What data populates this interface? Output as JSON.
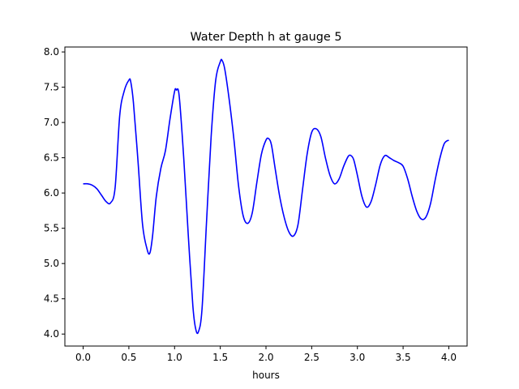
{
  "chart_data": {
    "type": "line",
    "title": "Water Depth h at gauge 5",
    "xlabel": "hours",
    "ylabel": "",
    "xlim": [
      -0.2,
      4.2
    ],
    "ylim": [
      3.83,
      8.07
    ],
    "x_ticks": [
      0.0,
      0.5,
      1.0,
      1.5,
      2.0,
      2.5,
      3.0,
      3.5,
      4.0
    ],
    "x_tick_labels": [
      "0.0",
      "0.5",
      "1.0",
      "1.5",
      "2.0",
      "2.5",
      "3.0",
      "3.5",
      "4.0"
    ],
    "y_ticks": [
      4.0,
      4.5,
      5.0,
      5.5,
      6.0,
      6.5,
      7.0,
      7.5,
      8.0
    ],
    "y_tick_labels": [
      "4.0",
      "4.5",
      "5.0",
      "5.5",
      "6.0",
      "6.5",
      "7.0",
      "7.5",
      "8.0"
    ],
    "grid": false,
    "legend": "none",
    "series": [
      {
        "color": "#0000ff",
        "x": [
          0.0,
          0.05,
          0.1,
          0.15,
          0.2,
          0.25,
          0.3,
          0.35,
          0.4,
          0.45,
          0.5,
          0.52,
          0.55,
          0.6,
          0.65,
          0.7,
          0.73,
          0.76,
          0.8,
          0.85,
          0.9,
          0.95,
          1.0,
          1.02,
          1.05,
          1.1,
          1.15,
          1.2,
          1.23,
          1.26,
          1.3,
          1.35,
          1.4,
          1.45,
          1.5,
          1.52,
          1.55,
          1.6,
          1.65,
          1.7,
          1.75,
          1.8,
          1.85,
          1.9,
          1.95,
          2.0,
          2.03,
          2.06,
          2.1,
          2.15,
          2.2,
          2.25,
          2.3,
          2.35,
          2.4,
          2.45,
          2.5,
          2.55,
          2.6,
          2.65,
          2.7,
          2.75,
          2.8,
          2.85,
          2.9,
          2.93,
          2.96,
          3.0,
          3.05,
          3.1,
          3.15,
          3.2,
          3.25,
          3.3,
          3.35,
          3.4,
          3.45,
          3.5,
          3.55,
          3.6,
          3.65,
          3.7,
          3.75,
          3.8,
          3.85,
          3.9,
          3.95,
          4.0
        ],
        "y": [
          6.13,
          6.13,
          6.11,
          6.06,
          5.97,
          5.88,
          5.86,
          6.08,
          7.1,
          7.45,
          7.6,
          7.58,
          7.28,
          6.45,
          5.55,
          5.2,
          5.15,
          5.4,
          5.95,
          6.35,
          6.6,
          7.05,
          7.44,
          7.46,
          7.38,
          6.5,
          5.4,
          4.4,
          4.08,
          4.03,
          4.35,
          5.6,
          6.8,
          7.6,
          7.86,
          7.88,
          7.75,
          7.3,
          6.75,
          6.1,
          5.68,
          5.57,
          5.72,
          6.15,
          6.55,
          6.75,
          6.77,
          6.68,
          6.35,
          5.95,
          5.65,
          5.45,
          5.39,
          5.55,
          6.05,
          6.55,
          6.86,
          6.91,
          6.8,
          6.5,
          6.25,
          6.13,
          6.2,
          6.38,
          6.52,
          6.53,
          6.47,
          6.25,
          5.95,
          5.8,
          5.88,
          6.12,
          6.4,
          6.53,
          6.5,
          6.46,
          6.43,
          6.38,
          6.2,
          5.95,
          5.74,
          5.63,
          5.66,
          5.85,
          6.18,
          6.48,
          6.7,
          6.75
        ]
      }
    ]
  }
}
